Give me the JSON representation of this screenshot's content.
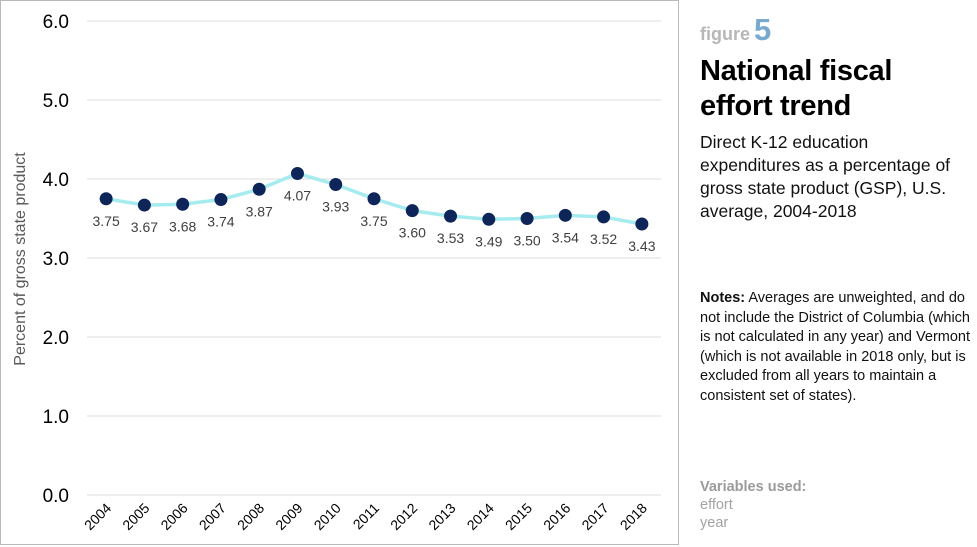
{
  "figure": {
    "label": "figure",
    "number": "5"
  },
  "title": "National fiscal effort trend",
  "subtitle": "Direct K-12 education expenditures as a percentage of gross state product (GSP), U.S. average, 2004-2018",
  "notes": {
    "heading": "Notes:",
    "text": "Averages are unweighted, and do not include the District of Columbia (which is not calculated in any year) and Vermont (which is not available in 2018 only, but is excluded from all years to maintain a consistent set of states)."
  },
  "variables": {
    "heading": "Variables used:",
    "items": [
      "effort",
      "year"
    ]
  },
  "colors": {
    "line": "#a6ecef",
    "marker": "#0d2559",
    "grid": "#dcdcdc",
    "figure_number": "#7aa9cf"
  },
  "chart_data": {
    "type": "line",
    "ylabel": "Percent of gross state product",
    "xlabel": "",
    "ylim": [
      0,
      6
    ],
    "yticks": [
      "0.0",
      "1.0",
      "2.0",
      "3.0",
      "4.0",
      "5.0",
      "6.0"
    ],
    "grid": true,
    "categories": [
      "2004",
      "2005",
      "2006",
      "2007",
      "2008",
      "2009",
      "2010",
      "2011",
      "2012",
      "2013",
      "2014",
      "2015",
      "2016",
      "2017",
      "2018"
    ],
    "series": [
      {
        "values": [
          3.75,
          3.67,
          3.68,
          3.74,
          3.87,
          4.07,
          3.93,
          3.75,
          3.6,
          3.53,
          3.49,
          3.5,
          3.54,
          3.52,
          3.43
        ],
        "labels": [
          "3.75",
          "3.67",
          "3.68",
          "3.74",
          "3.87",
          "4.07",
          "3.93",
          "3.75",
          "3.60",
          "3.53",
          "3.49",
          "3.50",
          "3.54",
          "3.52",
          "3.43"
        ]
      }
    ]
  }
}
